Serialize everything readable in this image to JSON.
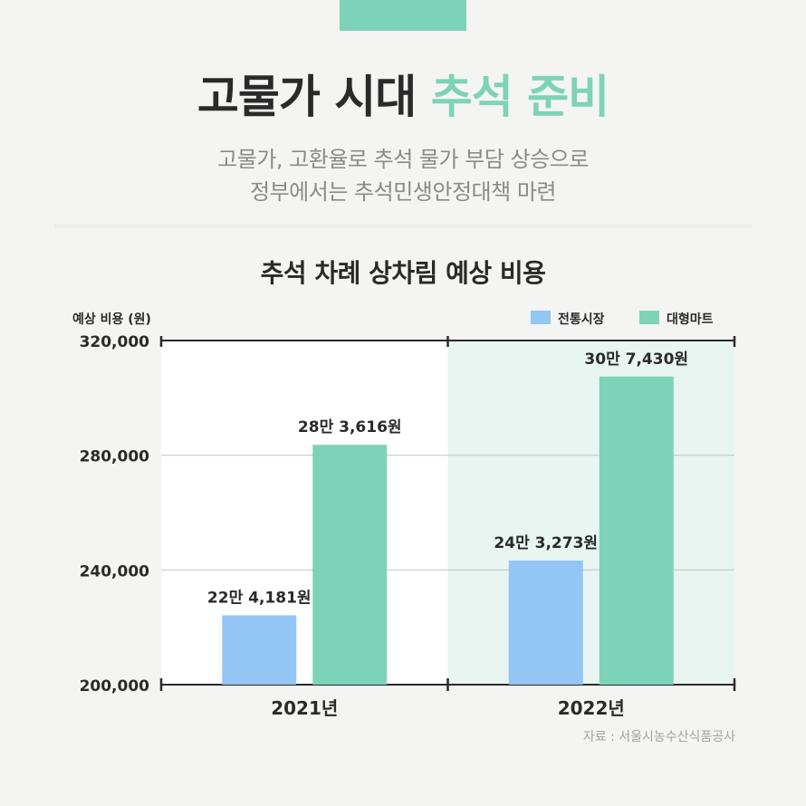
{
  "headline": {
    "main": "고물가 시대",
    "accent": "추석 준비"
  },
  "subtitle": {
    "line1": "고물가, 고환율로 추석 물가 부담 상승으로",
    "line2": "정부에서는 추석민생안정대책 마련"
  },
  "source": "자료 : 서울시농수산식품공사",
  "colors": {
    "accent": "#7dd3b8",
    "traditional_market": "#93c5f5",
    "large_mart": "#7dd3b8",
    "highlight_bg": "#e8f5f1",
    "text_dark": "#2a2a2a"
  },
  "chart_data": {
    "type": "bar",
    "title": "추석 차례 상차림 예상 비용",
    "ylabel": "예상 비용 (원)",
    "xlabel": "",
    "categories": [
      "2021년",
      "2022년"
    ],
    "series": [
      {
        "name": "전통시장",
        "values": [
          224181,
          243273
        ],
        "labels": [
          "22만 4,181원",
          "24만 3,273원"
        ]
      },
      {
        "name": "대형마트",
        "values": [
          283616,
          307430
        ],
        "labels": [
          "28만 3,616원",
          "30만 7,430원"
        ]
      }
    ],
    "ylim": [
      200000,
      320000
    ],
    "yticks": [
      200000,
      240000,
      280000,
      320000
    ],
    "ytick_labels": [
      "200,000",
      "240,000",
      "280,000",
      "320,000"
    ],
    "grid": true,
    "legend": "top-right",
    "highlight_category": "2022년"
  }
}
